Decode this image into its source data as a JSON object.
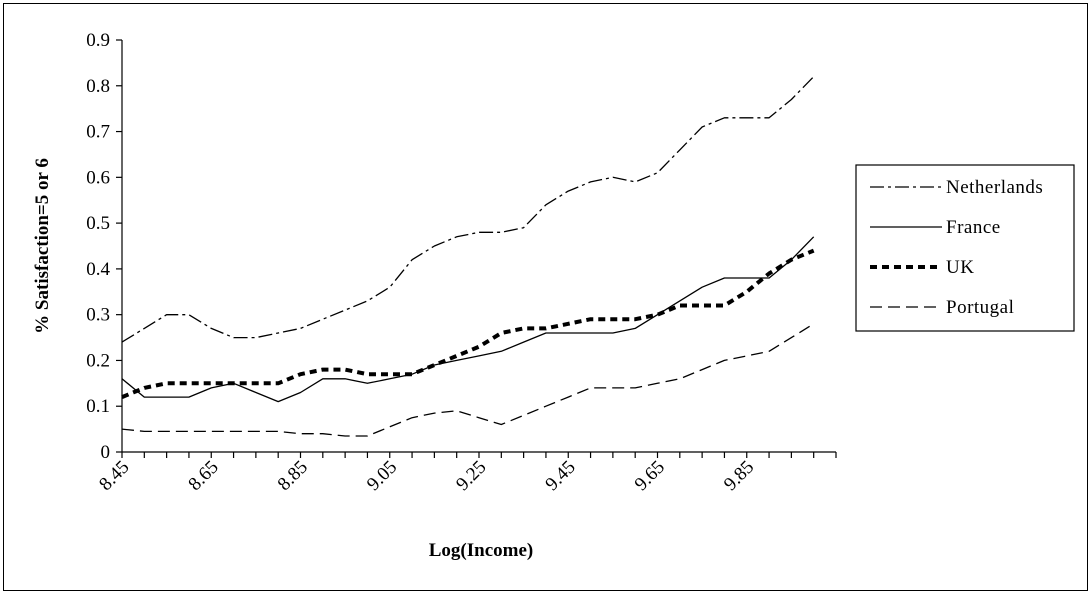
{
  "chart_data": {
    "type": "line",
    "xlabel": "Log(Income)",
    "ylabel": "% Satisfaction=5 or 6",
    "ylim": [
      0,
      0.9
    ],
    "xlim": [
      8.45,
      10.05
    ],
    "y_ticks": [
      "0",
      "0.1",
      "0.2",
      "0.3",
      "0.4",
      "0.5",
      "0.6",
      "0.7",
      "0.8",
      "0.9"
    ],
    "x_ticks": [
      "8.45",
      "8.65",
      "8.85",
      "9.05",
      "9.25",
      "9.45",
      "9.65",
      "9.85"
    ],
    "grid": false,
    "legend_position": "right",
    "x": [
      8.45,
      8.5,
      8.55,
      8.6,
      8.65,
      8.7,
      8.75,
      8.8,
      8.85,
      8.9,
      8.95,
      9.0,
      9.05,
      9.1,
      9.15,
      9.2,
      9.25,
      9.3,
      9.35,
      9.4,
      9.45,
      9.5,
      9.55,
      9.6,
      9.65,
      9.7,
      9.75,
      9.8,
      9.85,
      9.9,
      9.95,
      10.0
    ],
    "series": [
      {
        "name": "Netherlands",
        "style": "dashdot",
        "values": [
          0.24,
          0.27,
          0.3,
          0.3,
          0.27,
          0.25,
          0.25,
          0.26,
          0.27,
          0.29,
          0.31,
          0.33,
          0.36,
          0.42,
          0.45,
          0.47,
          0.48,
          0.48,
          0.49,
          0.54,
          0.57,
          0.59,
          0.6,
          0.59,
          0.61,
          0.66,
          0.71,
          0.73,
          0.73,
          0.73,
          0.77,
          0.82
        ]
      },
      {
        "name": "France",
        "style": "solid",
        "values": [
          0.16,
          0.12,
          0.12,
          0.12,
          0.14,
          0.15,
          0.13,
          0.11,
          0.13,
          0.16,
          0.16,
          0.15,
          0.16,
          0.17,
          0.19,
          0.2,
          0.21,
          0.22,
          0.24,
          0.26,
          0.26,
          0.26,
          0.26,
          0.27,
          0.3,
          0.33,
          0.36,
          0.38,
          0.38,
          0.38,
          0.42,
          0.47
        ]
      },
      {
        "name": "UK",
        "style": "heavy-dash",
        "values": [
          0.12,
          0.14,
          0.15,
          0.15,
          0.15,
          0.15,
          0.15,
          0.15,
          0.17,
          0.18,
          0.18,
          0.17,
          0.17,
          0.17,
          0.19,
          0.21,
          0.23,
          0.26,
          0.27,
          0.27,
          0.28,
          0.29,
          0.29,
          0.29,
          0.3,
          0.32,
          0.32,
          0.32,
          0.35,
          0.39,
          0.42,
          0.44
        ]
      },
      {
        "name": "Portugal",
        "style": "longdash",
        "values": [
          0.05,
          0.045,
          0.045,
          0.045,
          0.045,
          0.045,
          0.045,
          0.045,
          0.04,
          0.04,
          0.035,
          0.035,
          0.055,
          0.075,
          0.085,
          0.09,
          0.075,
          0.06,
          0.08,
          0.1,
          0.12,
          0.14,
          0.14,
          0.14,
          0.15,
          0.16,
          0.18,
          0.2,
          0.21,
          0.22,
          0.25,
          0.28
        ]
      }
    ]
  }
}
